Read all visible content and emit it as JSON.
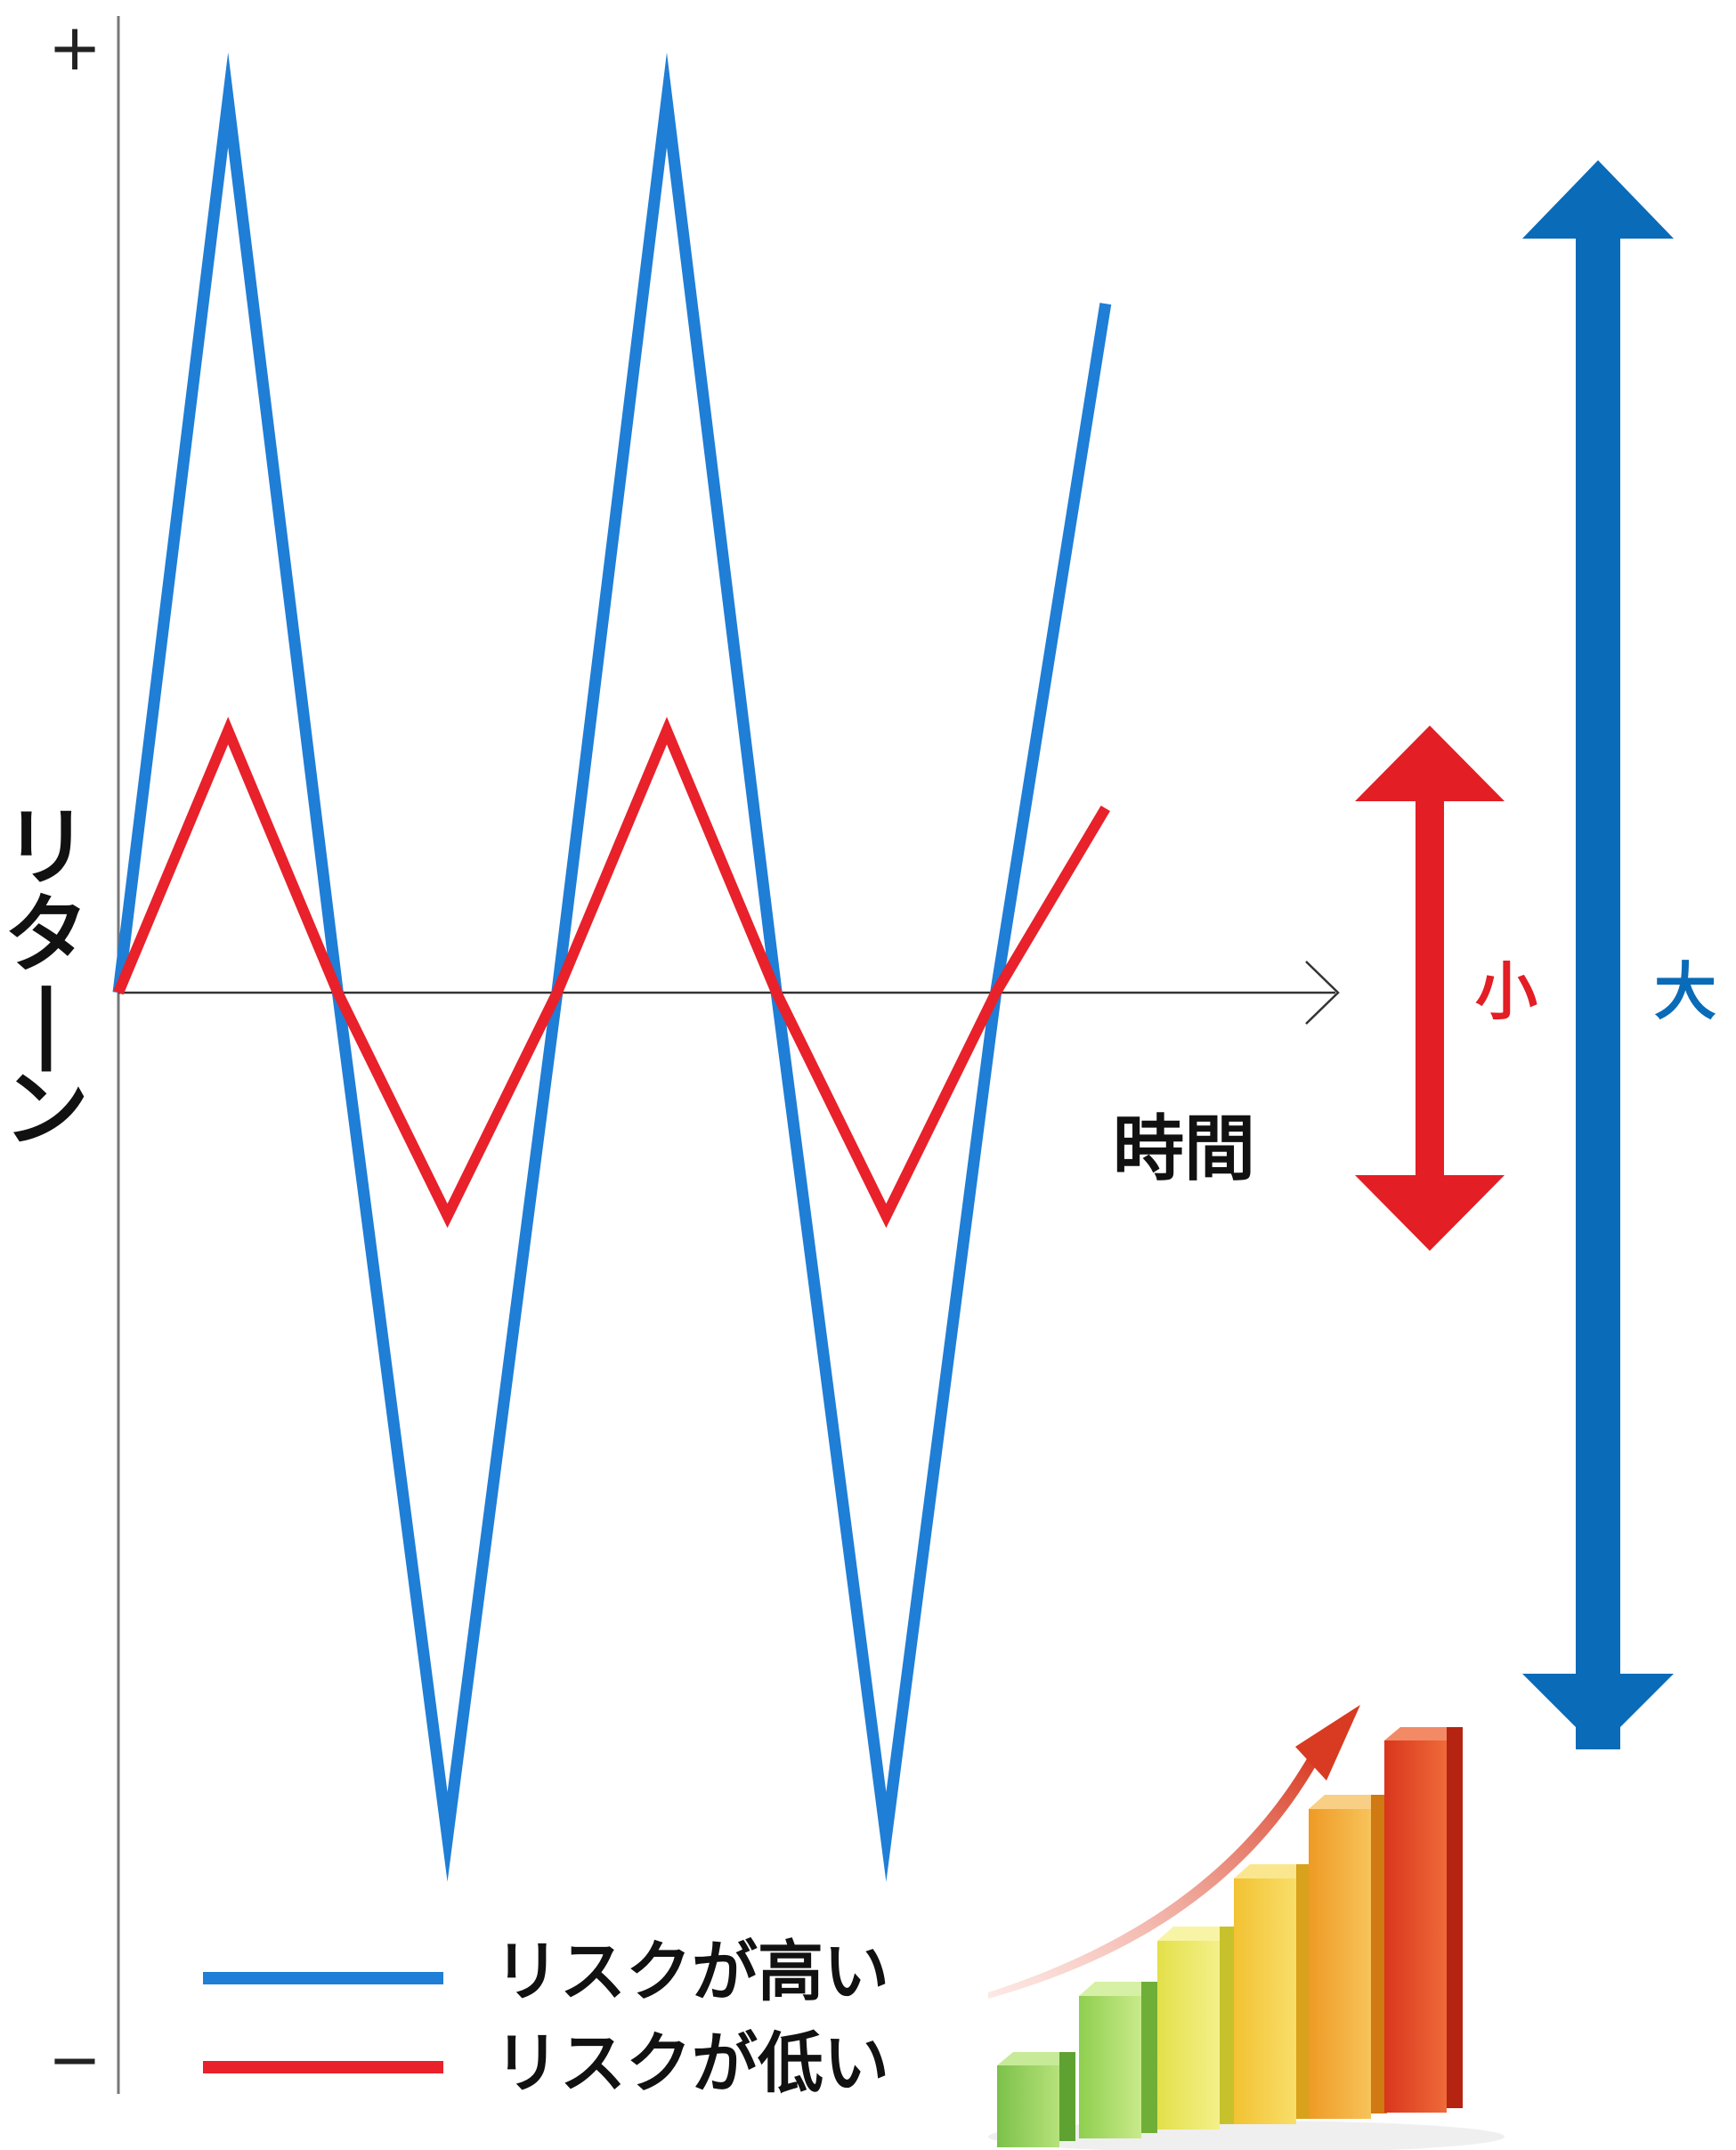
{
  "chart_data": {
    "type": "line",
    "x": [
      0,
      1,
      2,
      3,
      4,
      5,
      6,
      7,
      8,
      9
    ],
    "xlabel": "時間",
    "ylabel": "リターン",
    "y_max_label": "+",
    "y_min_label": "−",
    "ylim": [
      -10,
      10
    ],
    "series": [
      {
        "name": "リスクが高い",
        "color": "#1f7ed6",
        "values": [
          0,
          9.2,
          0,
          -8.7,
          0,
          9.2,
          0,
          -8.7,
          0,
          7.1
        ]
      },
      {
        "name": "リスクが低い",
        "color": "#e8212b",
        "values": [
          0,
          2.7,
          0,
          -2.3,
          0,
          2.7,
          0,
          -2.3,
          0,
          1.9
        ]
      }
    ],
    "range_arrows": [
      {
        "label": "小",
        "color": "#e31e25"
      },
      {
        "label": "大",
        "color": "#0a6bb8"
      }
    ],
    "grid": false,
    "legend_position": "bottom-left"
  }
}
